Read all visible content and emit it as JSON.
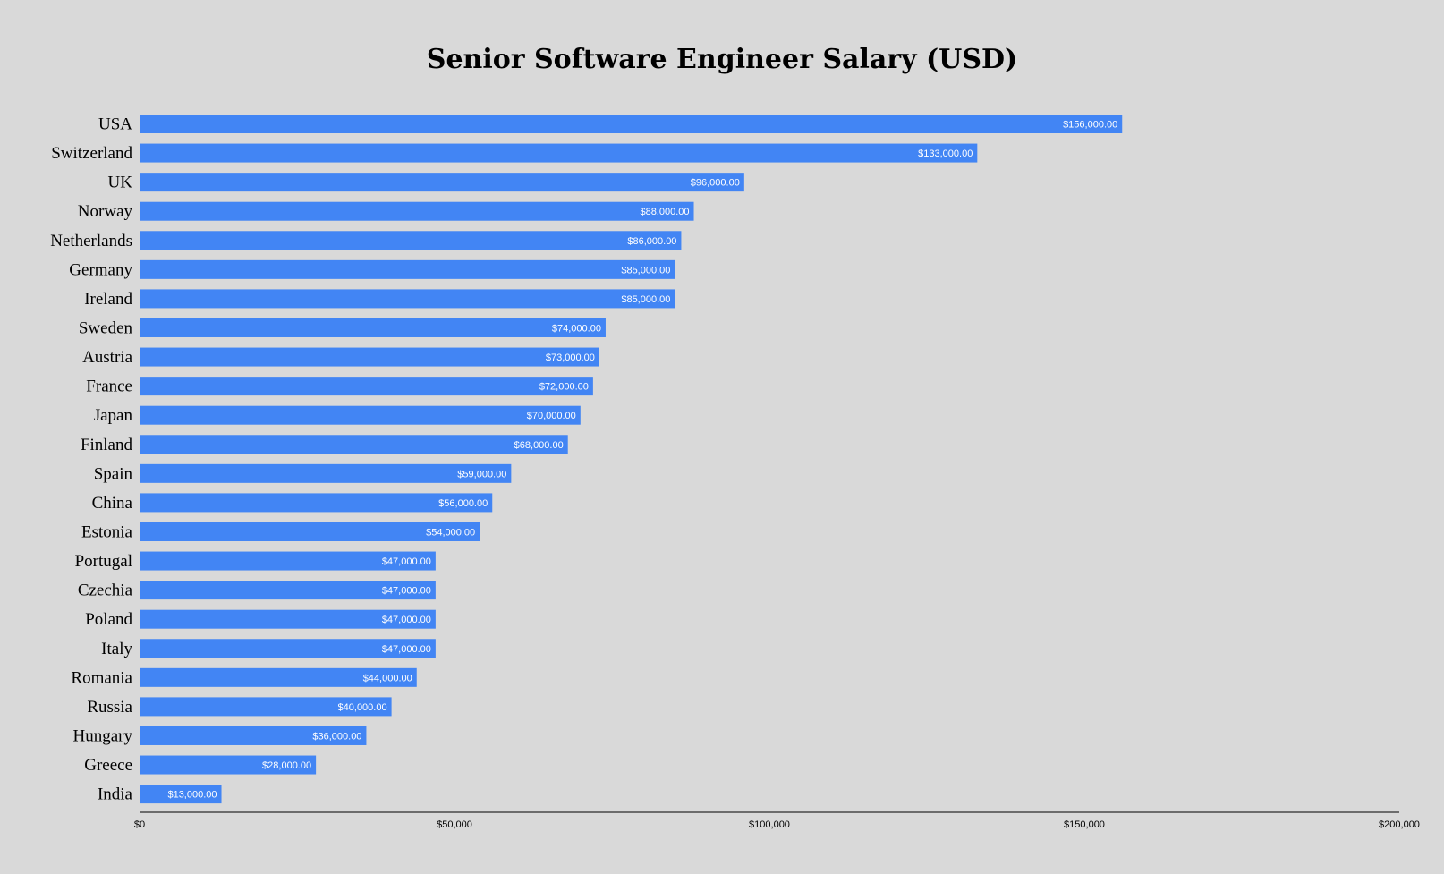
{
  "chart_data": {
    "type": "bar",
    "orientation": "horizontal",
    "title": "Senior Software Engineer Salary (USD)",
    "xlabel": "",
    "ylabel": "",
    "xlim": [
      0,
      200000
    ],
    "grid": false,
    "legend": "none",
    "categories": [
      "USA",
      "Switzerland",
      "UK",
      "Norway",
      "Netherlands",
      "Germany",
      "Ireland",
      "Sweden",
      "Austria",
      "France",
      "Japan",
      "Finland",
      "Spain",
      "China",
      "Estonia",
      "Portugal",
      "Czechia",
      "Poland",
      "Italy",
      "Romania",
      "Russia",
      "Hungary",
      "Greece",
      "India"
    ],
    "values": [
      156000,
      133000,
      96000,
      88000,
      86000,
      85000,
      85000,
      74000,
      73000,
      72000,
      70000,
      68000,
      59000,
      56000,
      54000,
      47000,
      47000,
      47000,
      47000,
      44000,
      40000,
      36000,
      28000,
      13000
    ],
    "data_labels": [
      "$156,000.00",
      "$133,000.00",
      "$96,000.00",
      "$88,000.00",
      "$86,000.00",
      "$85,000.00",
      "$85,000.00",
      "$74,000.00",
      "$73,000.00",
      "$72,000.00",
      "$70,000.00",
      "$68,000.00",
      "$59,000.00",
      "$56,000.00",
      "$54,000.00",
      "$47,000.00",
      "$47,000.00",
      "$47,000.00",
      "$47,000.00",
      "$44,000.00",
      "$40,000.00",
      "$36,000.00",
      "$28,000.00",
      "$13,000.00"
    ],
    "x_ticks": [
      0,
      50000,
      100000,
      150000,
      200000
    ],
    "x_tick_labels": [
      "$0",
      "$50,000",
      "$100,000",
      "$150,000",
      "$200,000"
    ],
    "bar_color": "#4285f4",
    "background_color": "#d9d9d9"
  }
}
